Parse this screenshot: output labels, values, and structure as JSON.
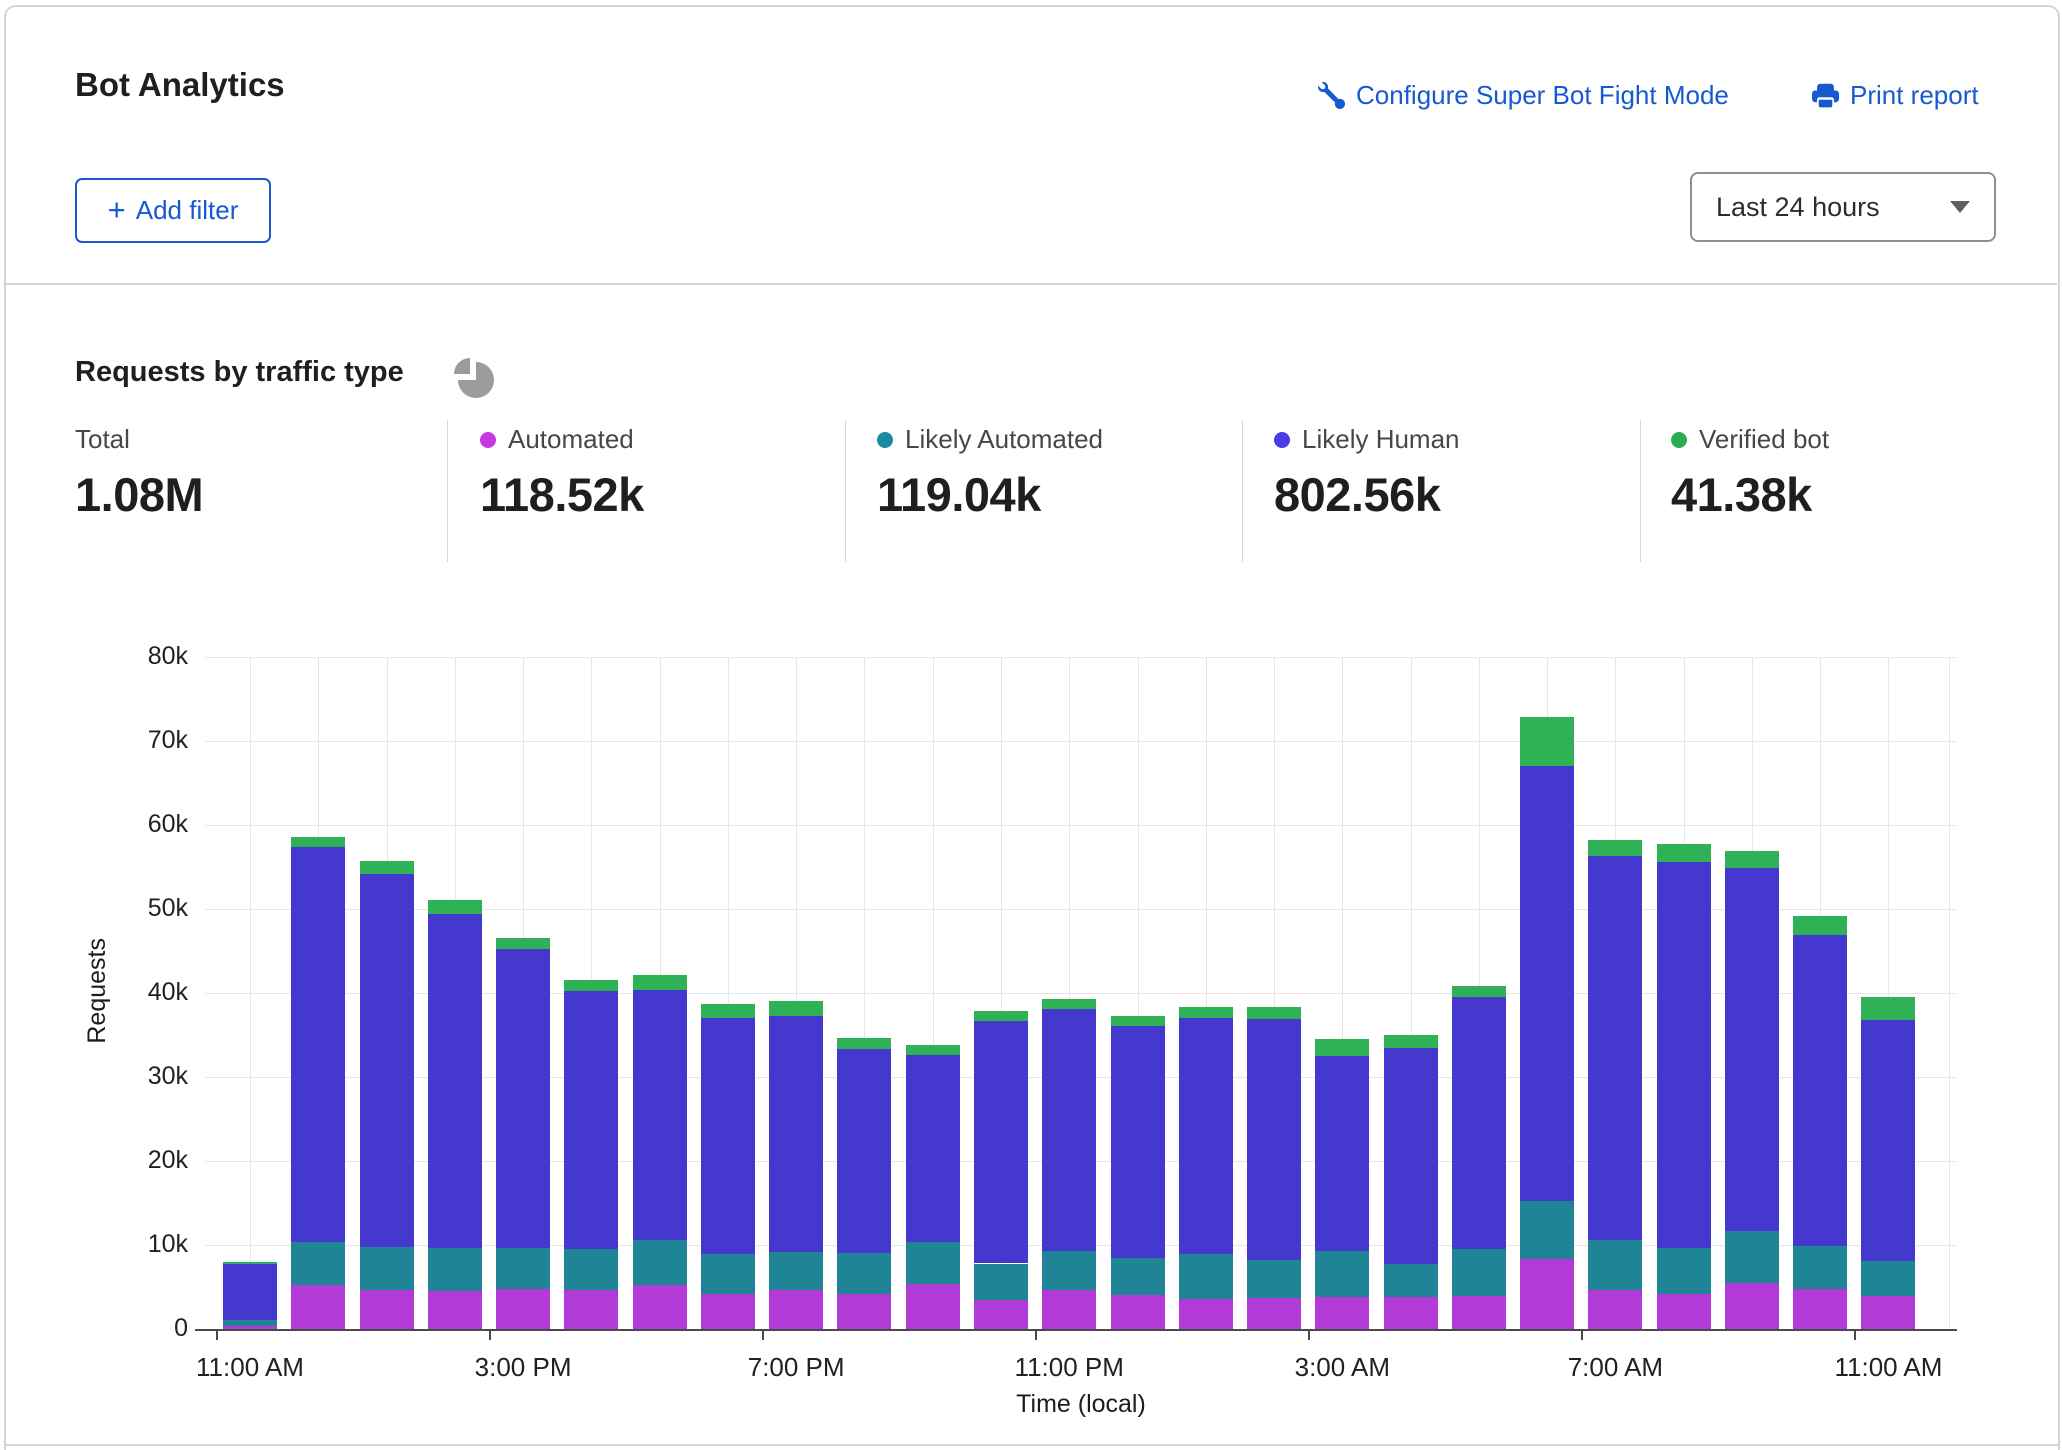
{
  "header": {
    "title": "Bot Analytics",
    "configure_link": "Configure Super Bot Fight Mode",
    "print_link": "Print report",
    "add_filter_plus": "+",
    "add_filter_label": "Add filter",
    "time_range_value": "Last 24 hours"
  },
  "section": {
    "title": "Requests by traffic type"
  },
  "stats": [
    {
      "label": "Total",
      "value": "1.08M",
      "color": ""
    },
    {
      "label": "Automated",
      "value": "118.52k",
      "color": "#c53be0"
    },
    {
      "label": "Likely Automated",
      "value": "119.04k",
      "color": "#1b8ba1"
    },
    {
      "label": "Likely Human",
      "value": "802.56k",
      "color": "#4c3be8"
    },
    {
      "label": "Verified bot",
      "value": "41.38k",
      "color": "#2bac55"
    }
  ],
  "colors": {
    "accent": "#1659d1",
    "border": "#d4d4d4",
    "grid": "#e6e6e6",
    "axis": "#4a4a4a",
    "text_dark": "#1f1f1f",
    "icon_gray": "#9b9b9b"
  },
  "chart_data": {
    "type": "bar",
    "stacked": true,
    "title": "Requests by traffic type",
    "xlabel": "Time (local)",
    "ylabel": "Requests",
    "ylim": [
      0,
      80000
    ],
    "y_ticks": [
      0,
      10000,
      20000,
      30000,
      40000,
      50000,
      60000,
      70000,
      80000
    ],
    "y_tick_labels": [
      "0",
      "10k",
      "20k",
      "30k",
      "40k",
      "50k",
      "60k",
      "70k",
      "80k"
    ],
    "x": [
      "11:00 AM",
      "12:00 PM",
      "1:00 PM",
      "2:00 PM",
      "3:00 PM",
      "4:00 PM",
      "5:00 PM",
      "6:00 PM",
      "7:00 PM",
      "8:00 PM",
      "9:00 PM",
      "10:00 PM",
      "11:00 PM",
      "12:00 AM",
      "1:00 AM",
      "2:00 AM",
      "3:00 AM",
      "4:00 AM",
      "5:00 AM",
      "6:00 AM",
      "7:00 AM",
      "8:00 AM",
      "9:00 AM",
      "10:00 AM",
      "11:00 AM"
    ],
    "x_tick_every": 4,
    "x_tick_labels": [
      "11:00 AM",
      "3:00 PM",
      "7:00 PM",
      "11:00 PM",
      "3:00 AM",
      "7:00 AM",
      "11:00 AM"
    ],
    "grid": true,
    "legend_position": "top",
    "series": [
      {
        "name": "Automated",
        "color": "#b23ad6",
        "values": [
          400,
          5200,
          4600,
          4500,
          4800,
          4600,
          5200,
          4200,
          4600,
          4200,
          5400,
          3500,
          4700,
          4100,
          3600,
          3700,
          3800,
          3800,
          3900,
          8300,
          4600,
          4200,
          5500,
          4800,
          3900
        ]
      },
      {
        "name": "Likely Automated",
        "color": "#1f8496",
        "values": [
          700,
          5200,
          5200,
          5100,
          4800,
          4900,
          5400,
          4700,
          4600,
          4800,
          5000,
          4300,
          4600,
          4400,
          5300,
          4500,
          5500,
          3900,
          5600,
          6900,
          6000,
          5400,
          6200,
          5100,
          4200
        ]
      },
      {
        "name": "Likely Human",
        "color": "#4438cf",
        "values": [
          6600,
          47000,
          44400,
          39800,
          35600,
          30700,
          29800,
          28100,
          28100,
          24300,
          22200,
          28900,
          28800,
          27600,
          28100,
          28700,
          23200,
          25800,
          30000,
          51800,
          45700,
          46000,
          43200,
          37000,
          28700
        ]
      },
      {
        "name": "Verified bot",
        "color": "#2fb156",
        "values": [
          300,
          1200,
          1500,
          1700,
          1300,
          1300,
          1700,
          1700,
          1700,
          1300,
          1200,
          1200,
          1200,
          1200,
          1300,
          1400,
          2000,
          1500,
          1300,
          5900,
          1900,
          2100,
          2000,
          2300,
          2700
        ]
      }
    ]
  }
}
